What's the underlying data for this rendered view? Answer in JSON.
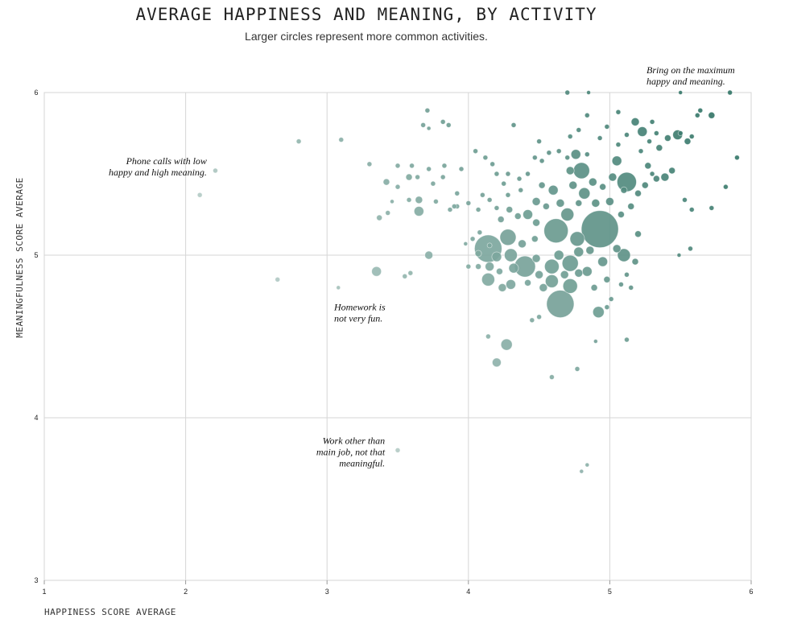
{
  "chart_data": {
    "type": "scatter",
    "title": "AVERAGE HAPPINESS AND MEANING, BY ACTIVITY",
    "subtitle": "Larger circles represent more common activities.",
    "xlabel": "HAPPINESS SCORE AVERAGE",
    "ylabel": "MEANINGFULNESS SCORE AVERAGE",
    "xlim": [
      1,
      6
    ],
    "ylim": [
      3,
      6
    ],
    "xticks": [
      "1",
      "2",
      "3",
      "4",
      "5",
      "6"
    ],
    "yticks": [
      "3",
      "4",
      "5",
      "6"
    ],
    "grid": true,
    "annotations": [
      {
        "lines": [
          "Bring on the maximum",
          "happy and meaning."
        ],
        "x": 5.26,
        "y": 6.12,
        "align": "left"
      },
      {
        "lines": [
          "Phone calls with low",
          "happy and high meaning."
        ],
        "x": 2.15,
        "y": 5.56,
        "align": "right"
      },
      {
        "lines": [
          "Homework is",
          "not very fun."
        ],
        "x": 3.05,
        "y": 4.66,
        "align": "left"
      },
      {
        "lines": [
          "Work other than",
          "main job, not that",
          "meaningful."
        ],
        "x": 3.41,
        "y": 3.84,
        "align": "right"
      }
    ],
    "points": [
      {
        "x": 2.21,
        "y": 5.52,
        "r": 3
      },
      {
        "x": 2.1,
        "y": 5.37,
        "r": 3
      },
      {
        "x": 2.8,
        "y": 5.7,
        "r": 3
      },
      {
        "x": 3.1,
        "y": 5.71,
        "r": 3
      },
      {
        "x": 2.65,
        "y": 4.85,
        "r": 3
      },
      {
        "x": 3.08,
        "y": 4.8,
        "r": 2.5
      },
      {
        "x": 3.35,
        "y": 4.9,
        "r": 6
      },
      {
        "x": 3.3,
        "y": 5.56,
        "r": 3
      },
      {
        "x": 3.42,
        "y": 5.45,
        "r": 4
      },
      {
        "x": 3.5,
        "y": 5.55,
        "r": 3
      },
      {
        "x": 3.5,
        "y": 5.42,
        "r": 3
      },
      {
        "x": 3.46,
        "y": 5.33,
        "r": 2.5
      },
      {
        "x": 3.43,
        "y": 5.26,
        "r": 3
      },
      {
        "x": 3.37,
        "y": 5.23,
        "r": 3.5
      },
      {
        "x": 3.55,
        "y": 4.87,
        "r": 3
      },
      {
        "x": 3.59,
        "y": 4.89,
        "r": 3
      },
      {
        "x": 3.72,
        "y": 5.0,
        "r": 5
      },
      {
        "x": 3.65,
        "y": 5.27,
        "r": 6
      },
      {
        "x": 3.65,
        "y": 5.34,
        "r": 4.5
      },
      {
        "x": 3.58,
        "y": 5.34,
        "r": 3
      },
      {
        "x": 3.58,
        "y": 5.48,
        "r": 4
      },
      {
        "x": 3.6,
        "y": 5.55,
        "r": 3
      },
      {
        "x": 3.64,
        "y": 5.48,
        "r": 3
      },
      {
        "x": 3.72,
        "y": 5.53,
        "r": 3
      },
      {
        "x": 3.75,
        "y": 5.44,
        "r": 3
      },
      {
        "x": 3.77,
        "y": 5.33,
        "r": 3
      },
      {
        "x": 3.82,
        "y": 5.48,
        "r": 3
      },
      {
        "x": 3.83,
        "y": 5.55,
        "r": 3
      },
      {
        "x": 3.87,
        "y": 5.28,
        "r": 3
      },
      {
        "x": 3.92,
        "y": 5.3,
        "r": 3
      },
      {
        "x": 3.92,
        "y": 5.38,
        "r": 3
      },
      {
        "x": 3.95,
        "y": 5.53,
        "r": 3
      },
      {
        "x": 3.71,
        "y": 5.89,
        "r": 3
      },
      {
        "x": 3.68,
        "y": 5.8,
        "r": 3
      },
      {
        "x": 3.72,
        "y": 5.78,
        "r": 2.5
      },
      {
        "x": 3.82,
        "y": 5.82,
        "r": 3
      },
      {
        "x": 3.86,
        "y": 5.8,
        "r": 3
      },
      {
        "x": 3.9,
        "y": 5.3,
        "r": 3
      },
      {
        "x": 4.59,
        "y": 4.25,
        "r": 3
      },
      {
        "x": 3.5,
        "y": 3.8,
        "r": 3
      },
      {
        "x": 4.8,
        "y": 3.67,
        "r": 2.5
      },
      {
        "x": 4.84,
        "y": 3.71,
        "r": 2.5
      },
      {
        "x": 4.2,
        "y": 4.34,
        "r": 5.5
      },
      {
        "x": 4.27,
        "y": 4.45,
        "r": 7
      },
      {
        "x": 4.14,
        "y": 4.5,
        "r": 3
      },
      {
        "x": 4.77,
        "y": 4.3,
        "r": 3
      },
      {
        "x": 4.9,
        "y": 4.47,
        "r": 2.5
      },
      {
        "x": 5.12,
        "y": 4.48,
        "r": 3
      },
      {
        "x": 4.5,
        "y": 4.62,
        "r": 3
      },
      {
        "x": 4.45,
        "y": 4.6,
        "r": 3
      },
      {
        "x": 4.65,
        "y": 4.7,
        "r": 17
      },
      {
        "x": 4.92,
        "y": 4.65,
        "r": 7
      },
      {
        "x": 4.98,
        "y": 4.68,
        "r": 3
      },
      {
        "x": 5.01,
        "y": 4.73,
        "r": 3
      },
      {
        "x": 3.98,
        "y": 5.07,
        "r": 2.5
      },
      {
        "x": 4.03,
        "y": 5.1,
        "r": 3
      },
      {
        "x": 4.07,
        "y": 5.01,
        "r": 4
      },
      {
        "x": 4.07,
        "y": 4.93,
        "r": 3.5
      },
      {
        "x": 4.0,
        "y": 4.93,
        "r": 3
      },
      {
        "x": 4.08,
        "y": 5.14,
        "r": 3
      },
      {
        "x": 4.15,
        "y": 5.06,
        "r": 3
      },
      {
        "x": 4.14,
        "y": 5.04,
        "r": 17
      },
      {
        "x": 4.15,
        "y": 4.93,
        "r": 5.5
      },
      {
        "x": 4.14,
        "y": 4.85,
        "r": 8
      },
      {
        "x": 4.2,
        "y": 4.99,
        "r": 6
      },
      {
        "x": 4.22,
        "y": 4.9,
        "r": 4
      },
      {
        "x": 4.24,
        "y": 4.8,
        "r": 5
      },
      {
        "x": 4.28,
        "y": 5.11,
        "r": 10
      },
      {
        "x": 4.3,
        "y": 5.0,
        "r": 8
      },
      {
        "x": 4.32,
        "y": 4.92,
        "r": 6
      },
      {
        "x": 4.3,
        "y": 4.82,
        "r": 6
      },
      {
        "x": 4.38,
        "y": 5.07,
        "r": 5
      },
      {
        "x": 4.4,
        "y": 4.93,
        "r": 13
      },
      {
        "x": 4.42,
        "y": 4.83,
        "r": 4
      },
      {
        "x": 4.48,
        "y": 4.98,
        "r": 5
      },
      {
        "x": 4.5,
        "y": 4.88,
        "r": 5
      },
      {
        "x": 4.47,
        "y": 5.1,
        "r": 4
      },
      {
        "x": 4.48,
        "y": 5.2,
        "r": 4.5
      },
      {
        "x": 4.53,
        "y": 4.8,
        "r": 5
      },
      {
        "x": 4.59,
        "y": 4.93,
        "r": 9
      },
      {
        "x": 4.59,
        "y": 4.84,
        "r": 8
      },
      {
        "x": 4.62,
        "y": 5.15,
        "r": 15
      },
      {
        "x": 4.64,
        "y": 5.0,
        "r": 6
      },
      {
        "x": 4.68,
        "y": 4.88,
        "r": 5
      },
      {
        "x": 4.72,
        "y": 4.95,
        "r": 10
      },
      {
        "x": 4.72,
        "y": 4.81,
        "r": 9
      },
      {
        "x": 4.78,
        "y": 4.89,
        "r": 5
      },
      {
        "x": 4.78,
        "y": 5.02,
        "r": 6
      },
      {
        "x": 4.77,
        "y": 5.1,
        "r": 9
      },
      {
        "x": 4.84,
        "y": 4.9,
        "r": 6
      },
      {
        "x": 4.86,
        "y": 5.03,
        "r": 5
      },
      {
        "x": 4.89,
        "y": 4.8,
        "r": 4
      },
      {
        "x": 4.93,
        "y": 5.16,
        "r": 23
      },
      {
        "x": 4.95,
        "y": 4.96,
        "r": 6
      },
      {
        "x": 4.98,
        "y": 4.85,
        "r": 4
      },
      {
        "x": 5.05,
        "y": 5.04,
        "r": 5
      },
      {
        "x": 5.1,
        "y": 5.0,
        "r": 8
      },
      {
        "x": 5.12,
        "y": 4.88,
        "r": 3
      },
      {
        "x": 5.18,
        "y": 4.96,
        "r": 4
      },
      {
        "x": 5.2,
        "y": 5.13,
        "r": 4
      },
      {
        "x": 5.08,
        "y": 4.82,
        "r": 3
      },
      {
        "x": 5.15,
        "y": 4.8,
        "r": 3
      },
      {
        "x": 4.23,
        "y": 5.22,
        "r": 4
      },
      {
        "x": 4.29,
        "y": 5.28,
        "r": 4
      },
      {
        "x": 4.35,
        "y": 5.24,
        "r": 4
      },
      {
        "x": 4.42,
        "y": 5.25,
        "r": 6
      },
      {
        "x": 4.48,
        "y": 5.33,
        "r": 5
      },
      {
        "x": 4.55,
        "y": 5.3,
        "r": 4
      },
      {
        "x": 4.6,
        "y": 5.4,
        "r": 6
      },
      {
        "x": 4.52,
        "y": 5.43,
        "r": 4
      },
      {
        "x": 4.65,
        "y": 5.32,
        "r": 5
      },
      {
        "x": 4.7,
        "y": 5.25,
        "r": 8
      },
      {
        "x": 4.74,
        "y": 5.43,
        "r": 5
      },
      {
        "x": 4.78,
        "y": 5.32,
        "r": 4
      },
      {
        "x": 4.82,
        "y": 5.38,
        "r": 7
      },
      {
        "x": 4.72,
        "y": 5.52,
        "r": 5
      },
      {
        "x": 4.8,
        "y": 5.52,
        "r": 10
      },
      {
        "x": 4.88,
        "y": 5.45,
        "r": 5
      },
      {
        "x": 4.9,
        "y": 5.32,
        "r": 5
      },
      {
        "x": 4.95,
        "y": 5.42,
        "r": 4
      },
      {
        "x": 5.0,
        "y": 5.33,
        "r": 5
      },
      {
        "x": 5.02,
        "y": 5.48,
        "r": 5
      },
      {
        "x": 5.05,
        "y": 5.58,
        "r": 6
      },
      {
        "x": 5.08,
        "y": 5.25,
        "r": 4
      },
      {
        "x": 5.1,
        "y": 5.4,
        "r": 4
      },
      {
        "x": 5.12,
        "y": 5.45,
        "r": 12
      },
      {
        "x": 5.15,
        "y": 5.3,
        "r": 4
      },
      {
        "x": 5.2,
        "y": 5.38,
        "r": 4
      },
      {
        "x": 5.25,
        "y": 5.43,
        "r": 4
      },
      {
        "x": 5.27,
        "y": 5.55,
        "r": 4
      },
      {
        "x": 5.3,
        "y": 5.5,
        "r": 3
      },
      {
        "x": 5.33,
        "y": 5.47,
        "r": 4
      },
      {
        "x": 5.39,
        "y": 5.48,
        "r": 5
      },
      {
        "x": 5.44,
        "y": 5.52,
        "r": 4
      },
      {
        "x": 5.5,
        "y": 5.75,
        "r": 3
      },
      {
        "x": 5.48,
        "y": 5.74,
        "r": 6
      },
      {
        "x": 5.55,
        "y": 5.7,
        "r": 4
      },
      {
        "x": 5.58,
        "y": 5.73,
        "r": 3
      },
      {
        "x": 5.62,
        "y": 5.86,
        "r": 3
      },
      {
        "x": 5.64,
        "y": 5.89,
        "r": 3
      },
      {
        "x": 5.72,
        "y": 5.86,
        "r": 4
      },
      {
        "x": 5.85,
        "y": 6.0,
        "r": 3
      },
      {
        "x": 5.9,
        "y": 5.6,
        "r": 3
      },
      {
        "x": 5.82,
        "y": 5.42,
        "r": 3
      },
      {
        "x": 5.72,
        "y": 5.29,
        "r": 3
      },
      {
        "x": 5.58,
        "y": 5.28,
        "r": 3
      },
      {
        "x": 5.53,
        "y": 5.34,
        "r": 3
      },
      {
        "x": 5.49,
        "y": 5.0,
        "r": 2.5
      },
      {
        "x": 5.57,
        "y": 5.04,
        "r": 3
      },
      {
        "x": 5.3,
        "y": 5.82,
        "r": 3
      },
      {
        "x": 5.18,
        "y": 5.82,
        "r": 5
      },
      {
        "x": 5.23,
        "y": 5.76,
        "r": 6
      },
      {
        "x": 5.28,
        "y": 5.7,
        "r": 3
      },
      {
        "x": 5.33,
        "y": 5.75,
        "r": 3
      },
      {
        "x": 5.35,
        "y": 5.66,
        "r": 4
      },
      {
        "x": 5.41,
        "y": 5.72,
        "r": 4
      },
      {
        "x": 5.06,
        "y": 5.68,
        "r": 3
      },
      {
        "x": 5.12,
        "y": 5.74,
        "r": 3
      },
      {
        "x": 5.22,
        "y": 5.64,
        "r": 3
      },
      {
        "x": 4.98,
        "y": 5.79,
        "r": 3
      },
      {
        "x": 5.06,
        "y": 5.88,
        "r": 3
      },
      {
        "x": 4.93,
        "y": 5.72,
        "r": 3
      },
      {
        "x": 4.84,
        "y": 5.62,
        "r": 3
      },
      {
        "x": 4.76,
        "y": 5.62,
        "r": 6
      },
      {
        "x": 4.7,
        "y": 5.6,
        "r": 3
      },
      {
        "x": 4.64,
        "y": 5.64,
        "r": 3
      },
      {
        "x": 4.57,
        "y": 5.63,
        "r": 3
      },
      {
        "x": 4.52,
        "y": 5.58,
        "r": 3
      },
      {
        "x": 4.47,
        "y": 5.6,
        "r": 3
      },
      {
        "x": 4.42,
        "y": 5.5,
        "r": 3
      },
      {
        "x": 4.36,
        "y": 5.47,
        "r": 3
      },
      {
        "x": 4.28,
        "y": 5.5,
        "r": 3
      },
      {
        "x": 4.25,
        "y": 5.44,
        "r": 3
      },
      {
        "x": 4.2,
        "y": 5.5,
        "r": 3
      },
      {
        "x": 4.12,
        "y": 5.6,
        "r": 3
      },
      {
        "x": 4.05,
        "y": 5.64,
        "r": 3
      },
      {
        "x": 4.17,
        "y": 5.56,
        "r": 3
      },
      {
        "x": 4.5,
        "y": 5.7,
        "r": 3
      },
      {
        "x": 4.72,
        "y": 5.73,
        "r": 3
      },
      {
        "x": 4.32,
        "y": 5.8,
        "r": 3
      },
      {
        "x": 4.78,
        "y": 5.77,
        "r": 3
      },
      {
        "x": 4.84,
        "y": 5.86,
        "r": 3
      },
      {
        "x": 4.7,
        "y": 6.0,
        "r": 3
      },
      {
        "x": 4.85,
        "y": 6.0,
        "r": 2.5
      },
      {
        "x": 5.5,
        "y": 6.0,
        "r": 2.5
      },
      {
        "x": 4.15,
        "y": 5.34,
        "r": 3
      },
      {
        "x": 4.1,
        "y": 5.37,
        "r": 3
      },
      {
        "x": 4.2,
        "y": 5.29,
        "r": 3
      },
      {
        "x": 4.07,
        "y": 5.28,
        "r": 3
      },
      {
        "x": 4.0,
        "y": 5.32,
        "r": 3
      },
      {
        "x": 4.28,
        "y": 5.37,
        "r": 3
      },
      {
        "x": 4.37,
        "y": 5.4,
        "r": 3
      }
    ]
  }
}
